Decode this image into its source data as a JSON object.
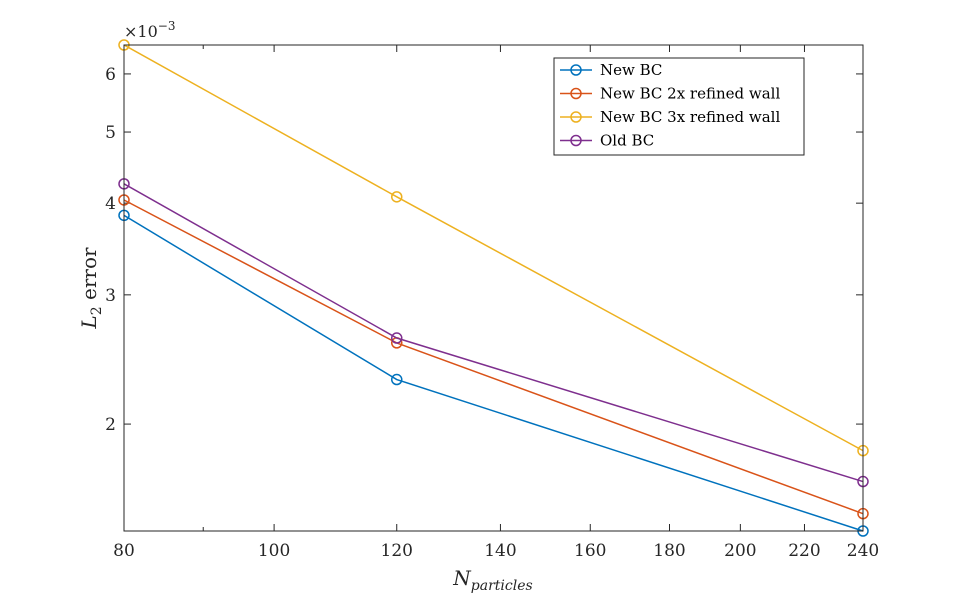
{
  "chart_data": {
    "type": "line",
    "title": "",
    "xlabel_main": "N",
    "xlabel_sub": "particles",
    "ylabel_main": "L",
    "ylabel_sub": "2",
    "ylabel_rest": " error",
    "y_exponent_text": "×10",
    "y_exponent_power": "−3",
    "x_scale": "log",
    "y_scale": "log",
    "xlim": [
      80,
      240
    ],
    "ylim": [
      1.43,
      6.57
    ],
    "x_ticks": [
      80,
      100,
      120,
      140,
      160,
      180,
      200,
      220,
      240
    ],
    "x_tick_labels": [
      "80",
      "100",
      "120",
      "140",
      "160",
      "180",
      "200",
      "220",
      "240"
    ],
    "y_ticks": [
      2,
      3,
      4,
      5,
      6
    ],
    "y_tick_labels": [
      "2",
      "3",
      "4",
      "5",
      "6"
    ],
    "x": [
      80,
      120,
      240
    ],
    "series": [
      {
        "name": "New BC",
        "color": "#0072BD",
        "values": [
          3.85,
          2.3,
          1.43
        ]
      },
      {
        "name": "New BC 2x refined wall",
        "color": "#D95319",
        "values": [
          4.04,
          2.58,
          1.51
        ]
      },
      {
        "name": "New BC 3x refined wall",
        "color": "#EDB120",
        "values": [
          6.57,
          4.08,
          1.84
        ]
      },
      {
        "name": "Old BC",
        "color": "#7E2F8E",
        "values": [
          4.25,
          2.62,
          1.67
        ]
      }
    ],
    "grid": false,
    "legend_position": "top-right"
  }
}
